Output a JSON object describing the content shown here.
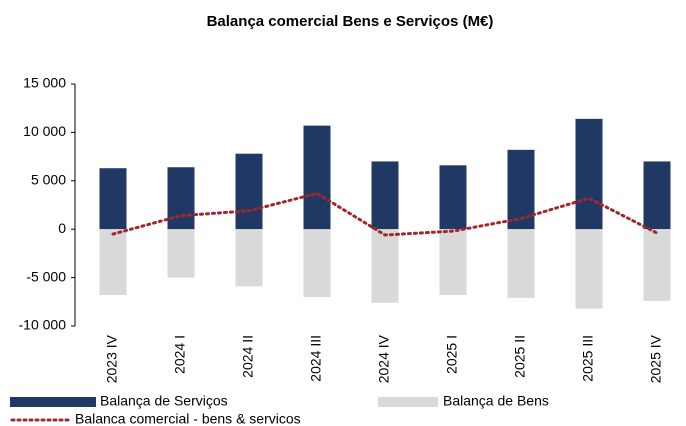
{
  "chart_data": {
    "type": "bar",
    "title": "Balança comercial Bens e Serviços (M€)",
    "categories": [
      "2023 IV",
      "2024 I",
      "2024 II",
      "2024 III",
      "2024 IV",
      "2025 I",
      "2025 II",
      "2025 III",
      "2025 IV"
    ],
    "series": [
      {
        "name": "Balança de Serviços",
        "color": "#1f3864",
        "type": "bar",
        "values": [
          6300,
          6400,
          7800,
          10700,
          7000,
          6600,
          8200,
          11400,
          7000
        ]
      },
      {
        "name": "Balança de Bens",
        "color": "#d9d9d9",
        "type": "bar",
        "values": [
          -6800,
          -5000,
          -5900,
          -7000,
          -7600,
          -6800,
          -7100,
          -8200,
          -7400
        ]
      },
      {
        "name": "Balanca comercial - bens & servicos",
        "color": "#a0282a",
        "type": "line",
        "values": [
          -500,
          1400,
          1900,
          3700,
          -600,
          -200,
          1100,
          3200,
          -400
        ]
      }
    ],
    "ylim": [
      -10000,
      15000
    ],
    "yticks": [
      {
        "value": -10000,
        "label": "-10 000"
      },
      {
        "value": -5000,
        "label": "-5 000"
      },
      0,
      {
        "value": 5000,
        "label": "5 000"
      },
      {
        "value": 10000,
        "label": "10 000"
      },
      {
        "value": 15000,
        "label": "15 000"
      }
    ],
    "grid": false
  }
}
